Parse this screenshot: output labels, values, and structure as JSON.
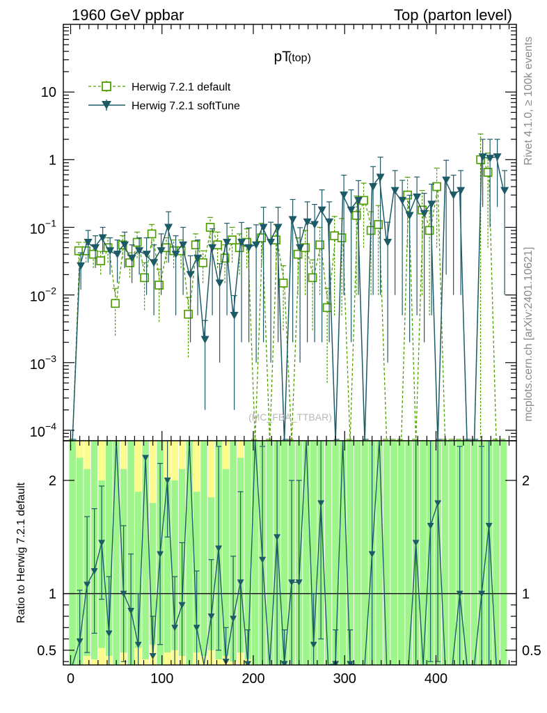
{
  "header": {
    "left": "1960 GeV ppbar",
    "right": "Top (parton level)"
  },
  "side_labels": {
    "rivet": "Rivet 4.1.0, ≥ 100k events",
    "mcplots": "mcplots.cern.ch [arXiv:2401.10621]"
  },
  "colors": {
    "default": "#4f9f00",
    "softtune": "#1c5a66",
    "band_green": "#9ef58c",
    "band_yellow": "#fbfb8e"
  },
  "chart_data": [
    {
      "type": "line",
      "panel": "main",
      "title_main": "pT",
      "title_sub": "(top)",
      "watermark": "(MC_FBA_TTBAR)",
      "yscale": "log",
      "xlim": [
        -8,
        488
      ],
      "ylim": [
        7e-05,
        100
      ],
      "y_ticks": [
        {
          "value": 10,
          "label": "10"
        },
        {
          "value": 1,
          "label": "1"
        },
        {
          "value": 0.1,
          "base": "10",
          "exp": "−1"
        },
        {
          "value": 0.01,
          "base": "10",
          "exp": "−2"
        },
        {
          "value": 0.001,
          "base": "10",
          "exp": "−3"
        },
        {
          "value": 0.0001,
          "base": "10",
          "exp": "−4"
        }
      ],
      "legend": [
        {
          "label": "Herwig 7.2.1 default",
          "style": "open-square-dashed"
        },
        {
          "label": "Herwig 7.2.1 softTune",
          "style": "filled-triangle-solid"
        }
      ],
      "series": [
        {
          "name": "Herwig 7.2.1 default",
          "x": [
            2,
            10,
            18,
            26,
            34,
            42,
            50,
            58,
            66,
            74,
            82,
            90,
            98,
            106,
            114,
            122,
            130,
            138,
            146,
            154,
            162,
            170,
            178,
            186,
            194,
            202,
            210,
            218,
            226,
            234,
            242,
            250,
            258,
            266,
            274,
            282,
            290,
            298,
            306,
            314,
            322,
            330,
            338,
            346,
            354,
            362,
            370,
            378,
            386,
            394,
            402,
            410,
            418,
            426,
            434,
            442,
            450,
            458,
            466,
            474
          ],
          "y": [
            0,
            0.045,
            0.045,
            0.04,
            0.032,
            0.05,
            0.0075,
            0.055,
            0.03,
            0.06,
            0.018,
            0.08,
            0.014,
            0.05,
            0.045,
            0.045,
            0.0052,
            0.055,
            0.03,
            0.1,
            0.055,
            0.035,
            0.065,
            0.05,
            0.06,
            0,
            0.07,
            0,
            0.065,
            0.015,
            0,
            0.04,
            0.05,
            0.018,
            0.055,
            0.0065,
            0.075,
            0.07,
            0,
            0.15,
            0.25,
            0.09,
            0.11,
            0,
            0,
            0,
            0.3,
            0,
            0.18,
            0.09,
            0.4,
            0,
            0,
            0,
            0,
            0,
            1.0,
            0.65,
            0,
            0
          ],
          "err": [
            0,
            0.015,
            0.015,
            0.015,
            0.012,
            0.02,
            0.005,
            0.02,
            0.012,
            0.025,
            0.012,
            0.03,
            0.01,
            0.02,
            0.02,
            0.02,
            0.004,
            0.025,
            0.015,
            0.04,
            0.03,
            0.02,
            0.035,
            0.03,
            0.035,
            0,
            0.045,
            0,
            0.045,
            0.012,
            0,
            0.03,
            0.04,
            0.015,
            0.045,
            0.006,
            0.07,
            0.065,
            0,
            0.14,
            0.2,
            0.08,
            0.1,
            0,
            0,
            0,
            0.25,
            0,
            0.17,
            0.085,
            0.35,
            0,
            0,
            0,
            0,
            0,
            1.4,
            0.6,
            0,
            0
          ]
        },
        {
          "name": "Herwig 7.2.1 softTune",
          "x": [
            2,
            10,
            18,
            26,
            34,
            42,
            50,
            58,
            66,
            74,
            82,
            90,
            98,
            106,
            114,
            122,
            130,
            138,
            146,
            154,
            162,
            170,
            178,
            186,
            194,
            202,
            210,
            218,
            226,
            234,
            242,
            250,
            258,
            266,
            274,
            282,
            290,
            298,
            306,
            314,
            322,
            330,
            338,
            346,
            354,
            362,
            370,
            378,
            386,
            394,
            402,
            410,
            418,
            426,
            434,
            442,
            450,
            458,
            466,
            474
          ],
          "y": [
            0,
            0.027,
            0.06,
            0.05,
            0.07,
            0.045,
            0.04,
            0.055,
            0.035,
            0.045,
            0.04,
            0.03,
            0.045,
            0.1,
            0.04,
            0.055,
            0.02,
            0.035,
            0.0022,
            0.05,
            0.015,
            0.06,
            0.005,
            0.06,
            0.05,
            0.055,
            0.1,
            0.06,
            0.1,
            0,
            0.13,
            0.05,
            0.12,
            0.11,
            0.18,
            0.12,
            0,
            0.3,
            0.18,
            0.25,
            0,
            0.4,
            0.55,
            0.06,
            0.35,
            0.25,
            0.15,
            0.28,
            0.16,
            0.22,
            0,
            0.5,
            0.3,
            0.35,
            0,
            0,
            1.1,
            1.05,
            1.1,
            0.35
          ],
          "err": [
            0,
            0.015,
            0.03,
            0.025,
            0.03,
            0.025,
            0.025,
            0.03,
            0.02,
            0.025,
            0.03,
            0.025,
            0.035,
            0.07,
            0.035,
            0.045,
            0.018,
            0.03,
            0.002,
            0.045,
            0.014,
            0.055,
            0.0048,
            0.058,
            0.048,
            0.054,
            0.098,
            0.059,
            0.098,
            0,
            0.128,
            0.049,
            0.118,
            0.108,
            0.178,
            0.118,
            0,
            0.29,
            0.178,
            0.24,
            0,
            0.39,
            0.54,
            0.059,
            0.34,
            0.245,
            0.148,
            0.275,
            0.158,
            0.215,
            0,
            0.48,
            0.29,
            0.34,
            0,
            0,
            0.9,
            0.95,
            0.9,
            0.34
          ]
        }
      ]
    },
    {
      "type": "line",
      "panel": "ratio",
      "ylabel": "Ratio to Herwig 7.2.1 default",
      "xlim": [
        -8,
        488
      ],
      "ylim": [
        0.37,
        2.35
      ],
      "x_ticks": [
        0,
        100,
        200,
        300,
        400
      ],
      "y_ticks": [
        0.5,
        1,
        2
      ],
      "reference_line": 1,
      "bands": {
        "x": [
          2,
          10,
          18,
          26,
          34,
          42,
          50,
          58,
          66,
          74,
          82,
          90,
          98,
          106,
          114,
          122,
          130,
          138,
          146,
          154,
          162,
          170,
          178,
          186,
          194,
          202,
          210,
          218,
          226,
          234,
          242,
          250,
          258,
          266,
          274,
          282,
          290,
          298,
          306,
          314,
          322,
          330,
          338,
          346,
          354,
          362,
          370,
          378,
          386,
          394,
          402,
          410,
          418,
          426,
          434,
          442,
          450,
          458,
          466,
          474
        ],
        "green_low": [
          0.37,
          0.37,
          0.45,
          0.42,
          0.52,
          0.45,
          0.37,
          0.48,
          0.37,
          0.52,
          0.42,
          0.55,
          0.37,
          0.48,
          0.5,
          0.45,
          0.37,
          0.48,
          0.45,
          0.5,
          0.42,
          0.45,
          0.4,
          0.48,
          0.42,
          0.37,
          0.37,
          0.37,
          0.37,
          0.37,
          0.37,
          0.37,
          0.37,
          0.37,
          0.37,
          0.37,
          0.37,
          0.37,
          0.37,
          0.37,
          0.37,
          0.37,
          0.37,
          0.37,
          0.37,
          0.37,
          0.37,
          0.37,
          0.37,
          0.37,
          0.37,
          0.37,
          0.37,
          0.37,
          0.37,
          0.37,
          0.37,
          0.37,
          0.37,
          0.37
        ],
        "green_high": [
          2.35,
          2.2,
          2.1,
          2.35,
          2.0,
          2.35,
          2.35,
          2.1,
          2.35,
          1.9,
          2.35,
          1.8,
          2.35,
          2.0,
          2.0,
          2.1,
          2.35,
          1.9,
          2.35,
          1.85,
          2.35,
          2.1,
          2.35,
          2.2,
          2.35,
          2.35,
          2.35,
          2.35,
          2.35,
          2.35,
          2.35,
          2.35,
          2.35,
          2.35,
          2.35,
          2.35,
          2.35,
          2.35,
          2.35,
          2.35,
          2.35,
          2.35,
          2.35,
          2.35,
          2.35,
          2.35,
          2.35,
          2.35,
          2.35,
          2.35,
          2.35,
          2.35,
          2.35,
          2.35,
          2.35,
          2.35,
          2.35,
          2.35,
          2.35,
          2.35
        ],
        "yellow_low": [
          0.37,
          0.37,
          0.37,
          0.37,
          0.37,
          0.37,
          0.37,
          0.37,
          0.37,
          0.37,
          0.37,
          0.37,
          0.37,
          0.37,
          0.37,
          0.37,
          0.37,
          0.37,
          0.37,
          0.37,
          0.37,
          0.37,
          0.37,
          0.37,
          0.37,
          0.37,
          0.37,
          0.37,
          0.37,
          0.37,
          0.37,
          0.37,
          0.37,
          0.37,
          0.37,
          0.37,
          0.37,
          0.37,
          0.37,
          0.37,
          0.37,
          0.37,
          0.37,
          0.37,
          0.37,
          0.37,
          0.37,
          0.37,
          0.37,
          0.37,
          0.37,
          0.37,
          0.37,
          0.37,
          0.37,
          0.37,
          0.37,
          0.37,
          0.37,
          0.37
        ],
        "yellow_high": [
          2.35,
          2.35,
          2.35,
          2.35,
          2.35,
          2.35,
          2.35,
          2.35,
          2.35,
          2.35,
          2.35,
          2.35,
          2.35,
          2.35,
          2.35,
          2.35,
          2.35,
          2.35,
          2.35,
          2.35,
          2.35,
          2.35,
          2.35,
          2.35,
          2.35,
          2.35,
          2.35,
          2.35,
          2.35,
          2.35,
          2.35,
          2.35,
          2.35,
          2.35,
          2.35,
          2.35,
          2.35,
          2.35,
          2.35,
          2.35,
          2.35,
          2.35,
          2.35,
          2.35,
          2.35,
          2.35,
          2.35,
          2.35,
          2.35,
          2.35,
          2.35,
          2.35,
          2.35,
          2.35,
          2.35,
          2.35,
          2.35,
          2.35,
          2.35,
          2.35
        ]
      },
      "series": [
        {
          "name": "Herwig 7.2.1 softTune / default",
          "x": [
            2,
            10,
            18,
            26,
            34,
            42,
            50,
            58,
            66,
            74,
            82,
            90,
            98,
            106,
            114,
            122,
            130,
            138,
            146,
            154,
            162,
            170,
            178,
            186,
            194,
            202,
            210,
            218,
            226,
            234,
            242,
            250,
            258,
            266,
            274,
            282,
            290,
            298,
            306,
            314,
            322,
            330,
            338,
            346,
            354,
            362,
            370,
            378,
            386,
            394,
            402,
            410,
            418,
            426,
            434,
            442,
            450,
            458,
            466,
            474
          ],
          "y": [
            0.3,
            0.58,
            1.08,
            1.2,
            1.45,
            0.65,
            2.4,
            1.0,
            0.85,
            0.55,
            2.2,
            0.45,
            1.35,
            2.0,
            0.7,
            0.9,
            2.4,
            0.7,
            0.3,
            0.8,
            1.4,
            0.4,
            0.78,
            1.1,
            0.38,
            2.4,
            1.3,
            0.25,
            1.5,
            0.38,
            1.1,
            1.1,
            2.4,
            0.55,
            1.8,
            0.3,
            0.38,
            2.4,
            0.38,
            0.25,
            0.25,
            1.35,
            2.4,
            0.3,
            0.3,
            0.3,
            0.35,
            1.45,
            0.3,
            1.6,
            1.8,
            0.3,
            0.3,
            1.0,
            0.3,
            0.3,
            1.0,
            1.6,
            0.3,
            0.3
          ],
          "err": [
            0,
            0.45,
            0.6,
            0.55,
            0.5,
            0.5,
            0,
            0.6,
            0.5,
            0.45,
            0,
            0.35,
            0.8,
            0.5,
            0.45,
            0.55,
            0,
            0.5,
            0,
            0.5,
            0.9,
            0.3,
            0.55,
            0.8,
            0.3,
            0,
            1.0,
            0,
            1.2,
            0.3,
            0.9,
            0.9,
            0,
            0.45,
            1.2,
            0,
            0.3,
            0,
            0.3,
            0,
            0,
            1.2,
            0,
            0,
            0,
            0,
            0.3,
            1.2,
            0,
            1.2,
            1.4,
            0,
            0,
            1.3,
            0,
            0,
            1.3,
            1.3,
            0,
            0
          ]
        }
      ]
    }
  ]
}
